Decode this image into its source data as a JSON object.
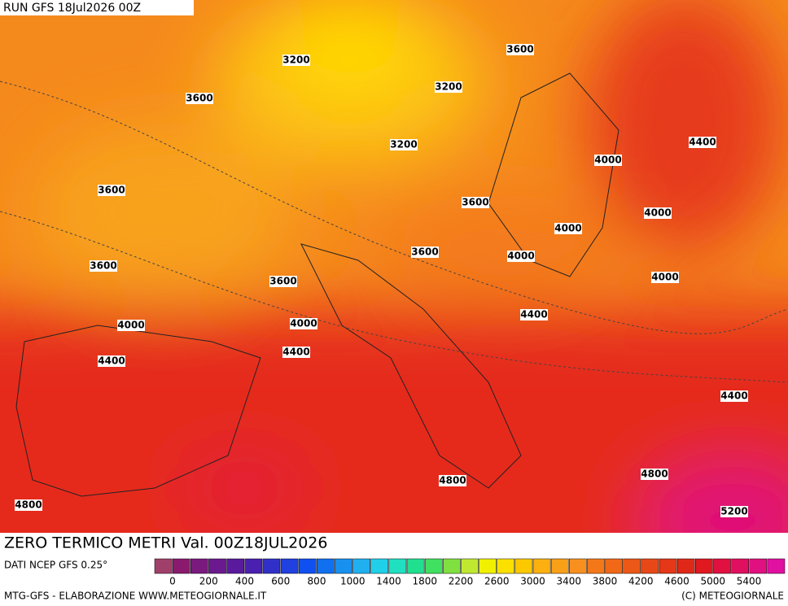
{
  "header": {
    "run": "RUN GFS 18Jul2026 00Z"
  },
  "map": {
    "title": "ZERO TERMICO METRI Val. 00Z18JUL2026",
    "contour_labels": [
      3200,
      3600,
      3200,
      3600,
      3200,
      4400,
      4000,
      3600,
      3600,
      4000,
      4000,
      3600,
      3600,
      4000,
      3600,
      4000,
      4400,
      4000,
      4000,
      4400,
      4400,
      4400,
      4800,
      4800,
      4800,
      5200
    ]
  },
  "legend": {
    "source": "DATI NCEP GFS 0.25°",
    "ticks": [
      0,
      200,
      400,
      600,
      800,
      1000,
      1400,
      1800,
      2200,
      2600,
      3000,
      3400,
      3800,
      4200,
      4600,
      5000,
      5400
    ]
  },
  "footer": {
    "left": "MTG-GFS - ELABORAZIONE WWW.METEOGIORNALE.IT",
    "right": "(C) METEOGIORNALE"
  }
}
